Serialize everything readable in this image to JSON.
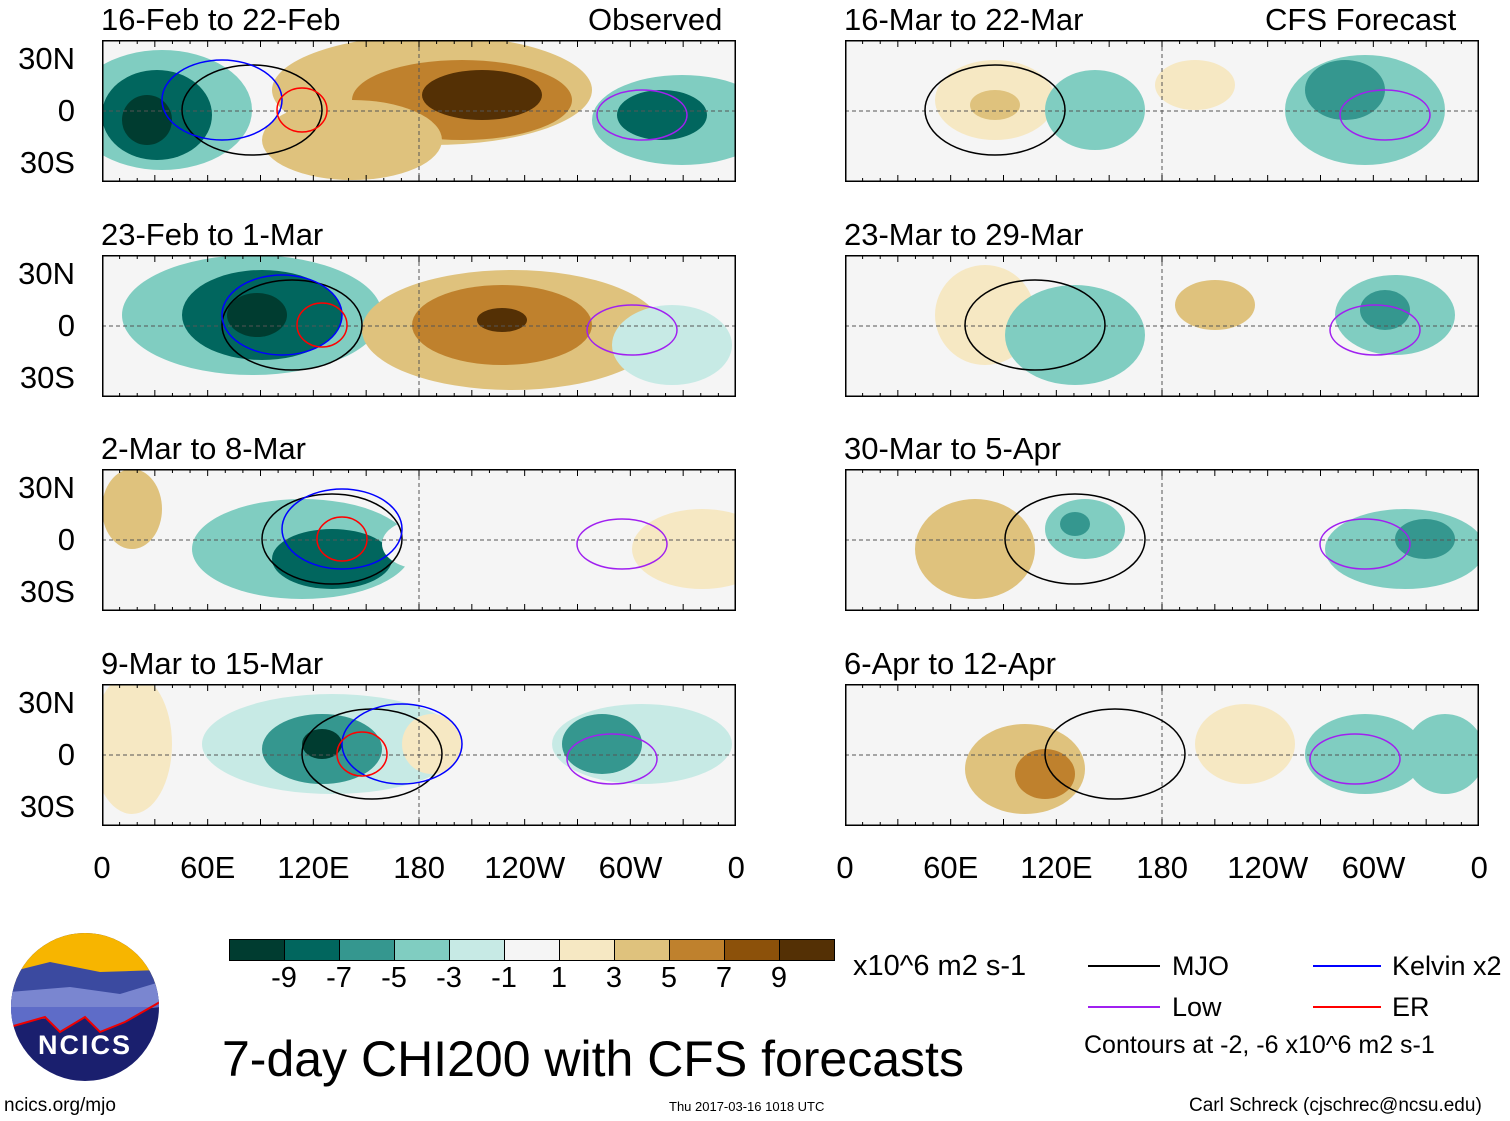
{
  "left_header": "Observed",
  "right_header": "CFS Forecast",
  "panels": {
    "left": [
      "16-Feb to 22-Feb",
      "23-Feb to 1-Mar",
      "2-Mar to 8-Mar",
      "9-Mar to 15-Mar"
    ],
    "right": [
      "16-Mar to 22-Mar",
      "23-Mar to 29-Mar",
      "30-Mar to 5-Apr",
      "6-Apr to 12-Apr"
    ]
  },
  "chart_data": {
    "type": "heatmap",
    "title": "7-day CHI200 with CFS forecasts",
    "yticks": [
      "30N",
      "0",
      "30S"
    ],
    "xticks": [
      "0",
      "60E",
      "120E",
      "180",
      "120W",
      "60W",
      "0"
    ],
    "colorbar": {
      "levels": [
        "-9",
        "-7",
        "-5",
        "-3",
        "-1",
        "1",
        "3",
        "5",
        "7",
        "9"
      ],
      "colors": [
        "#003c30",
        "#01665e",
        "#35978f",
        "#80cdc1",
        "#c7eae5",
        "#f5f5f5",
        "#f6e8c3",
        "#dfc27d",
        "#bf812d",
        "#8c510a",
        "#543005"
      ],
      "units": "x10^6 m2 s-1"
    },
    "legend": [
      {
        "label": "MJO",
        "color": "#000000"
      },
      {
        "label": "Kelvin x2",
        "color": "#0000ff"
      },
      {
        "label": "Low",
        "color": "#a020f0"
      },
      {
        "label": "ER",
        "color": "#ff0000"
      }
    ],
    "contour_note": "Contours at -2, -6 x10^6 m2 s-1"
  },
  "footer": {
    "site": "ncics.org/mjo",
    "timestamp": "Thu 2017-03-16 1018 UTC",
    "author": "Carl Schreck (cjschrec@ncsu.edu)",
    "logo_text": "NCICS"
  }
}
